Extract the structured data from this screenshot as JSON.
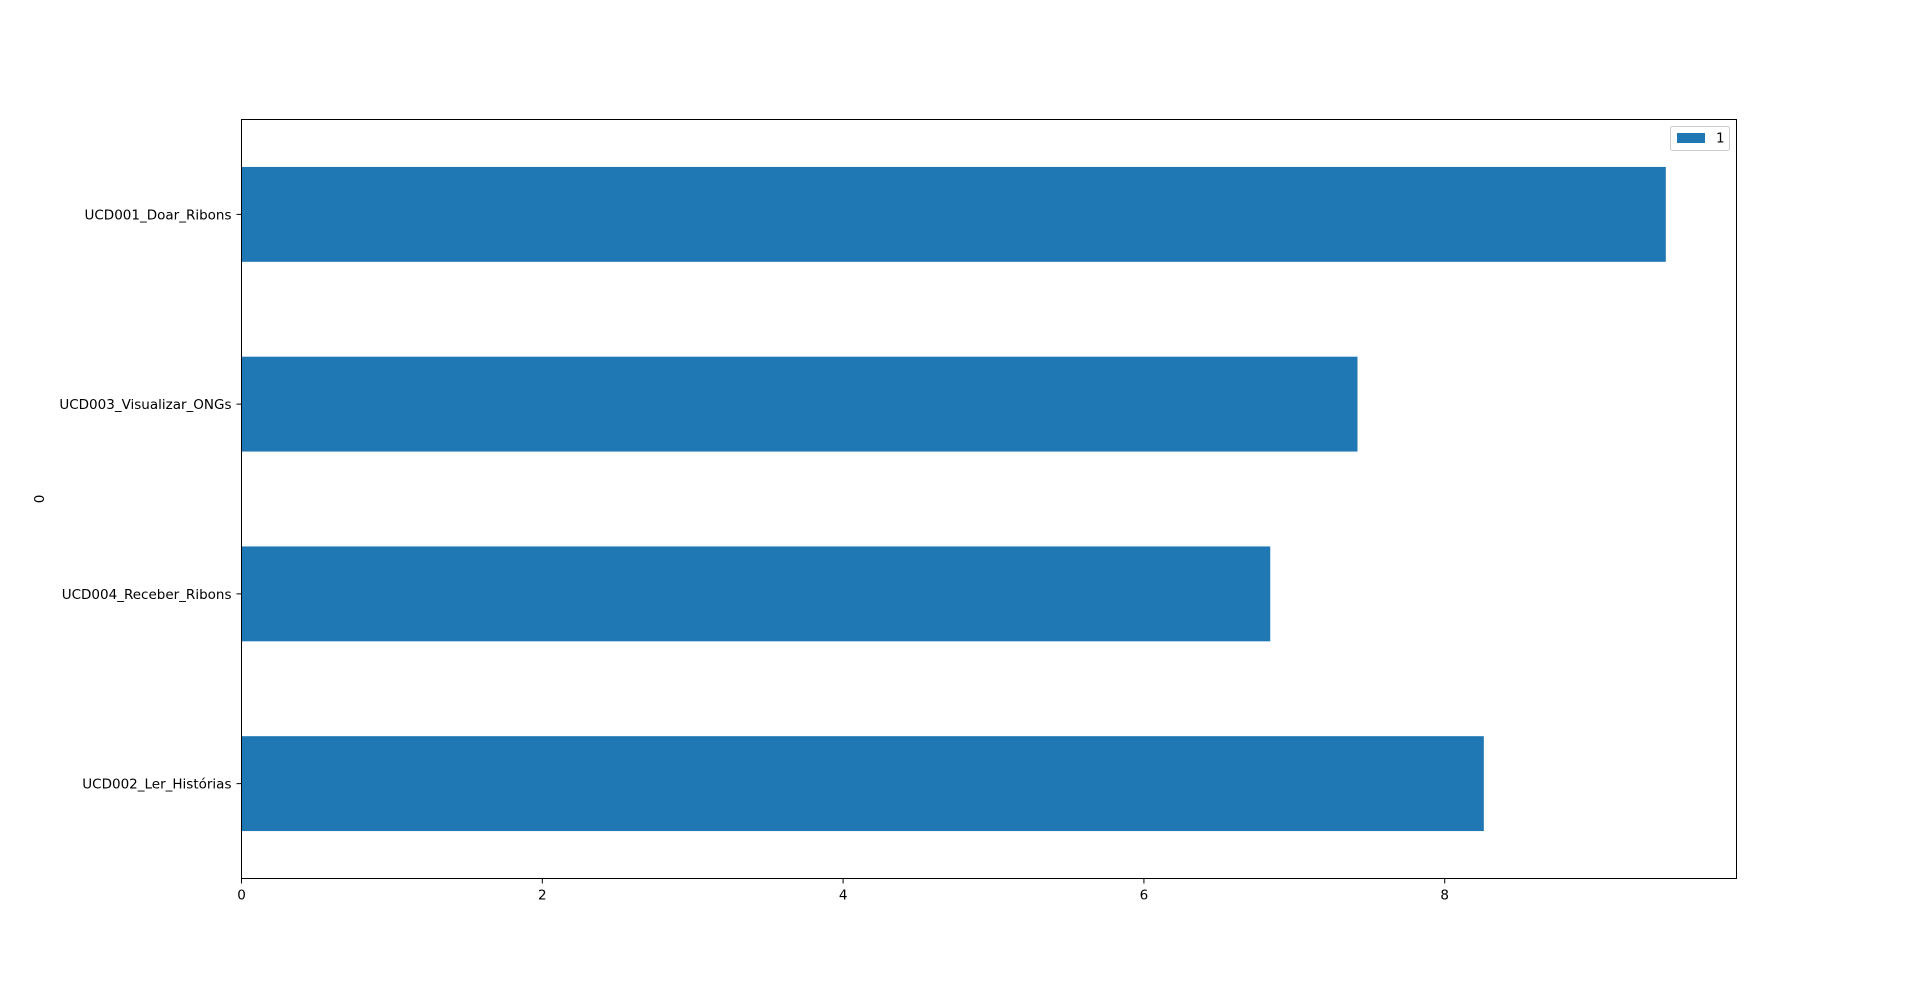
{
  "chart_data": {
    "type": "bar",
    "orientation": "horizontal",
    "categories": [
      "UCD001_Doar_Ribons",
      "UCD003_Visualizar_ONGs",
      "UCD004_Receber_Ribons",
      "UCD002_Ler_Histórias"
    ],
    "series": [
      {
        "name": "1",
        "color": "#1f77b4",
        "values": [
          9.47,
          7.42,
          6.84,
          8.26
        ]
      }
    ],
    "title": "",
    "xlabel": "",
    "ylabel": "0",
    "xlim": [
      0,
      9.94
    ],
    "xticks": [
      0,
      2,
      4,
      6,
      8
    ],
    "grid": false,
    "legend": {
      "placement": "upper-right",
      "entries": [
        "1"
      ]
    }
  }
}
